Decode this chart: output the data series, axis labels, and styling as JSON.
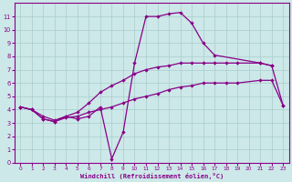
{
  "background_color": "#cce8e8",
  "grid_color": "#aacccc",
  "line_color": "#880088",
  "xlabel": "Windchill (Refroidissement éolien,°C)",
  "xlabel_color": "#880088",
  "tick_color": "#880088",
  "xlim": [
    -0.5,
    23.5
  ],
  "ylim": [
    0,
    12
  ],
  "xticks": [
    0,
    1,
    2,
    3,
    4,
    5,
    6,
    7,
    8,
    9,
    10,
    11,
    12,
    13,
    14,
    15,
    16,
    17,
    18,
    19,
    20,
    21,
    22,
    23
  ],
  "yticks": [
    0,
    1,
    2,
    3,
    4,
    5,
    6,
    7,
    8,
    9,
    10,
    11
  ],
  "line1_x": [
    0,
    1,
    2,
    3,
    4,
    5,
    6,
    7,
    8,
    9,
    10,
    11,
    12,
    13,
    14,
    15,
    16,
    17,
    21,
    22
  ],
  "line1_y": [
    4.2,
    4.0,
    3.3,
    3.1,
    3.5,
    3.3,
    3.5,
    4.2,
    0.3,
    2.3,
    7.5,
    11.0,
    11.0,
    11.2,
    11.3,
    10.5,
    9.0,
    8.1,
    7.5,
    7.3
  ],
  "line2_x": [
    0,
    1,
    2,
    3,
    4,
    5,
    6,
    7,
    8,
    9,
    10,
    11,
    12,
    13,
    14,
    15,
    16,
    17,
    18,
    19,
    21,
    22,
    23
  ],
  "line2_y": [
    4.2,
    4.0,
    3.5,
    3.2,
    3.5,
    3.8,
    4.5,
    5.3,
    5.8,
    6.2,
    6.7,
    7.0,
    7.2,
    7.3,
    7.5,
    7.5,
    7.5,
    7.5,
    7.5,
    7.5,
    7.5,
    7.3,
    4.3
  ],
  "line3_x": [
    0,
    1,
    2,
    3,
    4,
    5,
    6,
    7,
    8,
    9,
    10,
    11,
    12,
    13,
    14,
    15,
    16,
    17,
    18,
    19,
    21,
    22,
    23
  ],
  "line3_y": [
    4.2,
    4.0,
    3.3,
    3.1,
    3.4,
    3.5,
    3.8,
    4.0,
    4.2,
    4.5,
    4.8,
    5.0,
    5.2,
    5.5,
    5.7,
    5.8,
    6.0,
    6.0,
    6.0,
    6.0,
    6.2,
    6.2,
    4.3
  ]
}
